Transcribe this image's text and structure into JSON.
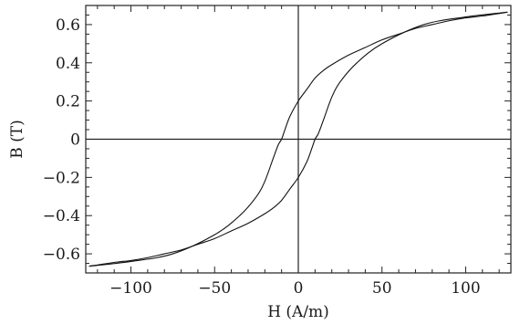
{
  "chart_data": {
    "type": "line",
    "title": "",
    "xlabel": "H (A/m)",
    "ylabel": "B (T)",
    "xlim": [
      -127,
      127
    ],
    "ylim": [
      -0.7,
      0.7
    ],
    "x_major_ticks": [
      -100,
      -50,
      0,
      50,
      100
    ],
    "x_tick_labels": [
      "−100",
      "−50",
      "0",
      "50",
      "100"
    ],
    "y_major_ticks": [
      -0.6,
      -0.4,
      -0.2,
      0,
      0.2,
      0.4,
      0.6
    ],
    "y_tick_labels": [
      "−0.6",
      "−0.4",
      "−0.2",
      "0",
      "0.2",
      "0.4",
      "0.6"
    ],
    "grid": false,
    "zero_lines": true,
    "series": [
      {
        "x": [
          -125,
          -100,
          -75,
          -50,
          -35,
          -25,
          -20,
          -15,
          -12,
          -10,
          -8,
          -5,
          0,
          5,
          10,
          15,
          20,
          30,
          40,
          50,
          60,
          70,
          80,
          90,
          100,
          110,
          125
        ],
        "y": [
          -0.665,
          -0.64,
          -0.6,
          -0.5,
          -0.4,
          -0.3,
          -0.22,
          -0.1,
          -0.03,
          0.0,
          0.05,
          0.12,
          0.2,
          0.26,
          0.32,
          0.36,
          0.39,
          0.44,
          0.48,
          0.52,
          0.55,
          0.58,
          0.6,
          0.62,
          0.635,
          0.645,
          0.665
        ],
        "color": "#111111"
      },
      {
        "x": [
          -125,
          -110,
          -100,
          -90,
          -80,
          -70,
          -60,
          -50,
          -40,
          -30,
          -20,
          -15,
          -10,
          -5,
          0,
          5,
          8,
          10,
          12,
          15,
          20,
          25,
          35,
          50,
          75,
          100,
          125
        ],
        "y": [
          -0.665,
          -0.645,
          -0.635,
          -0.62,
          -0.6,
          -0.58,
          -0.55,
          -0.52,
          -0.48,
          -0.44,
          -0.39,
          -0.36,
          -0.32,
          -0.26,
          -0.2,
          -0.12,
          -0.05,
          0.0,
          0.03,
          0.1,
          0.22,
          0.3,
          0.4,
          0.5,
          0.6,
          0.64,
          0.665
        ],
        "color": "#111111"
      }
    ]
  }
}
